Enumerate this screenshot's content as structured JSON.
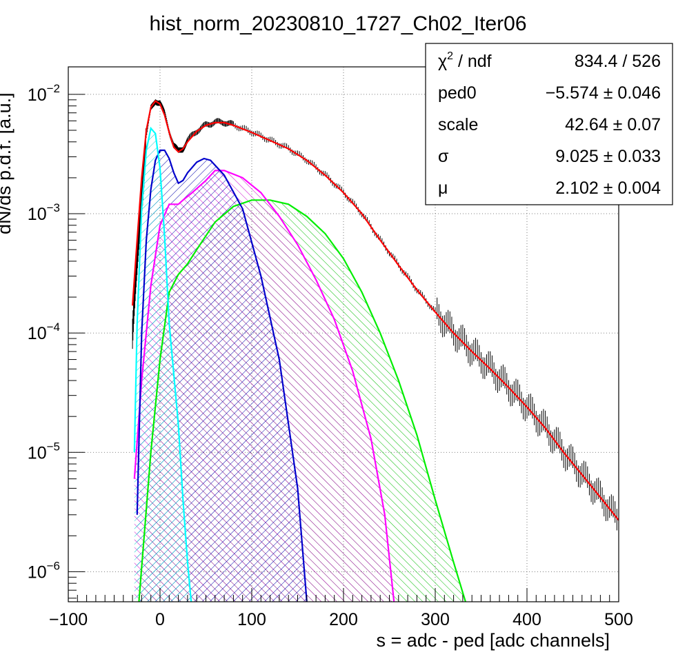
{
  "chart_data": {
    "type": "line",
    "title": "hist_norm_20230810_1727_Ch02_Iter06",
    "xlabel": "s = adc - ped [adc channels]",
    "ylabel": "dN/ds p.d.f. [a.u.]",
    "xlim": [
      -100,
      500
    ],
    "ylim": [
      5.6e-07,
      0.017
    ],
    "yscale": "log",
    "grid": true,
    "x_ticks": [
      {
        "value": -100,
        "label": "−100"
      },
      {
        "value": 0,
        "label": "0"
      },
      {
        "value": 100,
        "label": "100"
      },
      {
        "value": 200,
        "label": "200"
      },
      {
        "value": 300,
        "label": "300"
      },
      {
        "value": 400,
        "label": "400"
      },
      {
        "value": 500,
        "label": "500"
      }
    ],
    "y_ticks": [
      {
        "value": 0.01,
        "base": "10",
        "exp": "−2"
      },
      {
        "value": 0.001,
        "base": "10",
        "exp": "−3"
      },
      {
        "value": 0.0001,
        "base": "10",
        "exp": "−4"
      },
      {
        "value": 1e-05,
        "base": "10",
        "exp": "−5"
      },
      {
        "value": 1e-06,
        "base": "10",
        "exp": "−6"
      }
    ],
    "stats": [
      {
        "label": "χ2 / ndf",
        "value": "834.4 / 526"
      },
      {
        "label": "ped0",
        "value": "−5.574 ± 0.046"
      },
      {
        "label": "scale",
        "value": "42.64 ± 0.07"
      },
      {
        "label": "σ",
        "value": "9.025 ± 0.033"
      },
      {
        "label": "μ",
        "value": "2.102 ± 0.004"
      }
    ],
    "data_histogram": {
      "color": "#000000",
      "points": [
        [
          -30,
          0.0001
        ],
        [
          -25,
          0.00035
        ],
        [
          -20,
          0.0015
        ],
        [
          -15,
          0.0045
        ],
        [
          -10,
          0.0075
        ],
        [
          -5,
          0.0088
        ],
        [
          0,
          0.0084
        ],
        [
          5,
          0.0068
        ],
        [
          10,
          0.0049
        ],
        [
          15,
          0.0037
        ],
        [
          20,
          0.0033
        ],
        [
          25,
          0.0035
        ],
        [
          30,
          0.0041
        ],
        [
          40,
          0.0049
        ],
        [
          50,
          0.0055
        ],
        [
          60,
          0.0058
        ],
        [
          70,
          0.0058
        ],
        [
          80,
          0.0055
        ],
        [
          100,
          0.0048
        ],
        [
          120,
          0.0041
        ],
        [
          140,
          0.0035
        ],
        [
          160,
          0.0028
        ],
        [
          180,
          0.0021
        ],
        [
          200,
          0.0015
        ],
        [
          220,
          0.001
        ],
        [
          240,
          0.0006
        ],
        [
          260,
          0.00037
        ],
        [
          280,
          0.00023
        ],
        [
          300,
          0.00015
        ],
        [
          320,
          0.0001
        ],
        [
          340,
          7e-05
        ],
        [
          360,
          5e-05
        ],
        [
          380,
          3.5e-05
        ],
        [
          400,
          2.4e-05
        ],
        [
          420,
          1.6e-05
        ],
        [
          440,
          1e-05
        ],
        [
          460,
          6.5e-06
        ],
        [
          480,
          4.2e-06
        ],
        [
          500,
          2.7e-06
        ]
      ]
    },
    "series": [
      {
        "color": "#ff0000",
        "filled": false,
        "points": [
          [
            -30,
            0.00017
          ],
          [
            -25,
            0.0006
          ],
          [
            -20,
            0.002
          ],
          [
            -15,
            0.005
          ],
          [
            -10,
            0.0078
          ],
          [
            -5,
            0.0088
          ],
          [
            0,
            0.0083
          ],
          [
            5,
            0.0067
          ],
          [
            10,
            0.0048
          ],
          [
            15,
            0.0036
          ],
          [
            20,
            0.0033
          ],
          [
            25,
            0.0035
          ],
          [
            30,
            0.004
          ],
          [
            40,
            0.0049
          ],
          [
            50,
            0.0055
          ],
          [
            60,
            0.0058
          ],
          [
            70,
            0.0058
          ],
          [
            80,
            0.0055
          ],
          [
            100,
            0.0048
          ],
          [
            120,
            0.0041
          ],
          [
            140,
            0.0035
          ],
          [
            160,
            0.0028
          ],
          [
            180,
            0.0021
          ],
          [
            200,
            0.0015
          ],
          [
            220,
            0.001
          ],
          [
            240,
            0.0006
          ],
          [
            260,
            0.00037
          ],
          [
            280,
            0.00023
          ],
          [
            300,
            0.00015
          ],
          [
            320,
            0.0001
          ],
          [
            340,
            7e-05
          ],
          [
            360,
            5e-05
          ],
          [
            380,
            3.5e-05
          ],
          [
            400,
            2.4e-05
          ],
          [
            420,
            1.6e-05
          ],
          [
            440,
            1e-05
          ],
          [
            460,
            6.5e-06
          ],
          [
            480,
            4.2e-06
          ],
          [
            500,
            2.7e-06
          ]
        ]
      },
      {
        "color": "#00ffff",
        "filled": true,
        "points": [
          [
            -28,
            1e-05
          ],
          [
            -25,
            0.00012
          ],
          [
            -20,
            0.0011
          ],
          [
            -15,
            0.0034
          ],
          [
            -10,
            0.0052
          ],
          [
            -5,
            0.0047
          ],
          [
            0,
            0.0024
          ],
          [
            5,
            0.00065
          ],
          [
            10,
            0.00012
          ],
          [
            20,
            1.7e-05
          ],
          [
            25,
            4e-06
          ],
          [
            30,
            1.2e-06
          ],
          [
            34,
            5.6e-07
          ]
        ]
      },
      {
        "color": "#0000cc",
        "filled": true,
        "points": [
          [
            -25,
            3e-06
          ],
          [
            -20,
            0.0001
          ],
          [
            -15,
            0.0006
          ],
          [
            -10,
            0.0016
          ],
          [
            -5,
            0.0028
          ],
          [
            0,
            0.0034
          ],
          [
            5,
            0.0034
          ],
          [
            10,
            0.0029
          ],
          [
            15,
            0.0022
          ],
          [
            20,
            0.0018
          ],
          [
            25,
            0.0019
          ],
          [
            30,
            0.0022
          ],
          [
            40,
            0.0027
          ],
          [
            48,
            0.0029
          ],
          [
            55,
            0.0028
          ],
          [
            70,
            0.0021
          ],
          [
            90,
            0.0011
          ],
          [
            110,
            0.0003
          ],
          [
            130,
            6e-05
          ],
          [
            150,
            5e-06
          ],
          [
            160,
            5.6e-07
          ]
        ]
      },
      {
        "color": "#ff00ff",
        "filled": true,
        "points": [
          [
            -28,
            6e-06
          ],
          [
            -20,
            4e-05
          ],
          [
            -10,
            0.00025
          ],
          [
            0,
            0.0008
          ],
          [
            10,
            0.0012
          ],
          [
            15,
            0.0012
          ],
          [
            20,
            0.0012
          ],
          [
            25,
            0.0013
          ],
          [
            35,
            0.0015
          ],
          [
            50,
            0.0019
          ],
          [
            60,
            0.0023
          ],
          [
            70,
            0.0023
          ],
          [
            90,
            0.002
          ],
          [
            110,
            0.0015
          ],
          [
            130,
            0.00095
          ],
          [
            150,
            0.00055
          ],
          [
            170,
            0.00028
          ],
          [
            190,
            0.00013
          ],
          [
            210,
            4.8e-05
          ],
          [
            230,
            1.3e-05
          ],
          [
            245,
            3e-06
          ],
          [
            255,
            5.6e-07
          ]
        ]
      },
      {
        "color": "#00ee00",
        "filled": true,
        "points": [
          [
            -23,
            5.6e-07
          ],
          [
            -10,
            1e-05
          ],
          [
            0,
            6e-05
          ],
          [
            10,
            0.00022
          ],
          [
            20,
            0.00031
          ],
          [
            30,
            0.00038
          ],
          [
            40,
            0.0005
          ],
          [
            60,
            0.00085
          ],
          [
            80,
            0.00115
          ],
          [
            100,
            0.0013
          ],
          [
            120,
            0.0013
          ],
          [
            140,
            0.0012
          ],
          [
            160,
            0.00095
          ],
          [
            180,
            0.00068
          ],
          [
            200,
            0.00042
          ],
          [
            220,
            0.00022
          ],
          [
            240,
            0.0001
          ],
          [
            260,
            4e-05
          ],
          [
            280,
            1.4e-05
          ],
          [
            300,
            4e-06
          ],
          [
            320,
            1.2e-06
          ],
          [
            333,
            5.6e-07
          ]
        ]
      }
    ]
  }
}
